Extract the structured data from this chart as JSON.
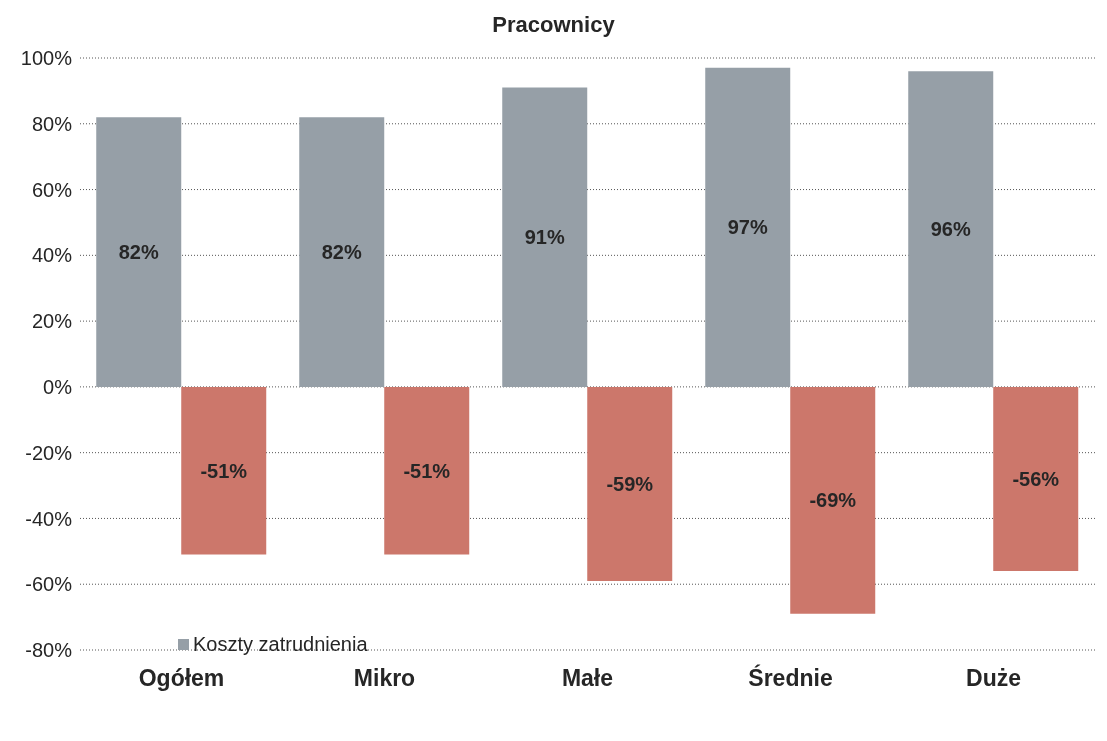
{
  "chart_data": {
    "type": "bar",
    "title": "Pracownicy",
    "categories": [
      "Ogółem",
      "Mikro",
      "Małe",
      "Średnie",
      "Duże"
    ],
    "series": [
      {
        "name": "Koszty zatrudnienia",
        "color": "#969fa7",
        "values": [
          82,
          82,
          91,
          97,
          96
        ],
        "value_labels": [
          "82%",
          "82%",
          "91%",
          "97%",
          "96%"
        ]
      },
      {
        "color": "#cc776b",
        "values": [
          -51,
          -51,
          -59,
          -69,
          -56
        ],
        "value_labels": [
          "-51%",
          "-51%",
          "-59%",
          "-69%",
          "-56%"
        ]
      }
    ],
    "ylim": [
      -80,
      100
    ],
    "yticks": [
      {
        "value": -80,
        "label": "-80%"
      },
      {
        "value": -60,
        "label": "-60%"
      },
      {
        "value": -40,
        "label": "-40%"
      },
      {
        "value": -20,
        "label": "-20%"
      },
      {
        "value": 0,
        "label": "0%"
      },
      {
        "value": 20,
        "label": "20%"
      },
      {
        "value": 40,
        "label": "40%"
      },
      {
        "value": 60,
        "label": "60%"
      },
      {
        "value": 80,
        "label": "80%"
      },
      {
        "value": 100,
        "label": "100%"
      }
    ],
    "grid": "y",
    "legend": "bottom left"
  }
}
